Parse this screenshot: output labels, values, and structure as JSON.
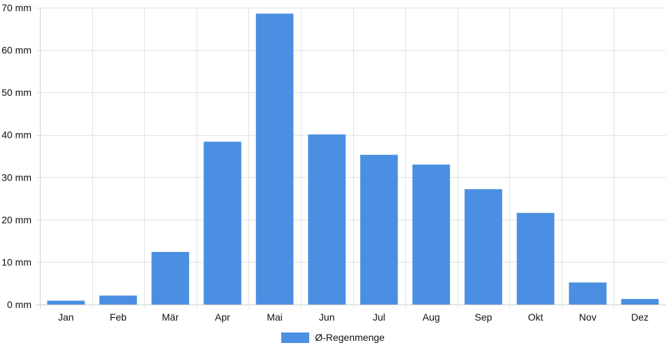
{
  "colors": {
    "bar": "#4a8fe2",
    "grid": "#e3e3e3",
    "axis": "#d0d0d0",
    "text": "#111111"
  },
  "chart_data": {
    "type": "bar",
    "title": "",
    "xlabel": "",
    "ylabel": "",
    "categories": [
      "Jan",
      "Feb",
      "Mär",
      "Apr",
      "Mai",
      "Jun",
      "Jul",
      "Aug",
      "Sep",
      "Okt",
      "Nov",
      "Dez"
    ],
    "series": [
      {
        "name": "Ø-Regenmenge",
        "values": [
          0.9,
          2.1,
          12.4,
          38.4,
          68.6,
          40.1,
          35.3,
          33.0,
          27.2,
          21.6,
          5.2,
          1.3
        ]
      }
    ],
    "ylim": [
      0,
      70
    ],
    "yticks": [
      0,
      10,
      20,
      30,
      40,
      50,
      60,
      70
    ],
    "ytick_labels": [
      "0 mm",
      "10 mm",
      "20 mm",
      "30 mm",
      "40 mm",
      "50 mm",
      "60 mm",
      "70 mm"
    ],
    "grid": true,
    "legend_position": "bottom"
  }
}
